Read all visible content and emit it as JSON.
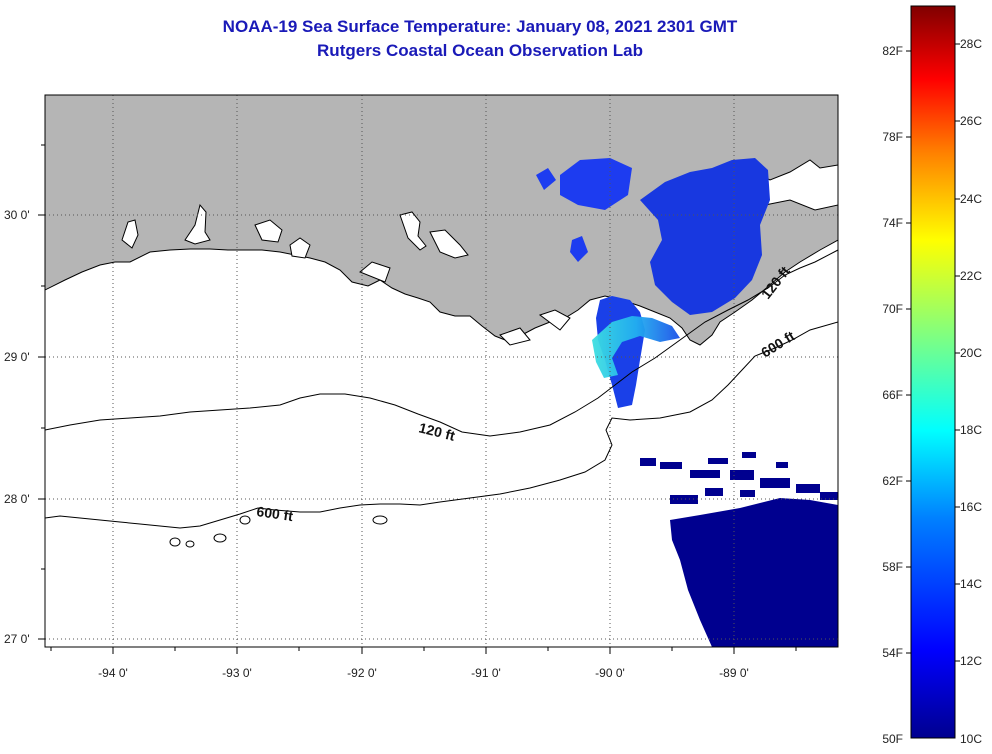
{
  "header": {
    "title_line1": "NOAA-19 Sea Surface Temperature:  January 08, 2021 2301 GMT",
    "title_line2": "Rutgers Coastal Ocean Observation Lab"
  },
  "map": {
    "lat_labels": [
      "30 0'",
      "29 0'",
      "28 0'",
      "27 0'"
    ],
    "lon_labels": [
      "-94 0'",
      "-93 0'",
      "-92 0'",
      "-91 0'",
      "-90 0'",
      "-89 0'"
    ],
    "contours": {
      "shallow_label": "120 ft",
      "deep_label": "600 ft"
    },
    "colors": {
      "land": "#b5b5b5",
      "water": "#ffffff",
      "sst_cold": "#00008f",
      "sst_blue": "#1d3cf0",
      "sst_cyan": "#39d9e8"
    }
  },
  "colorbar": {
    "fahrenheit_labels": [
      "82F",
      "78F",
      "74F",
      "70F",
      "66F",
      "62F",
      "58F",
      "54F",
      "50F"
    ],
    "celsius_labels": [
      "28C",
      "26C",
      "24C",
      "22C",
      "20C",
      "18C",
      "16C",
      "14C",
      "12C",
      "10C"
    ],
    "range_celsius": [
      10,
      29
    ],
    "gradient_colors": [
      "#00008f",
      "#0000ff",
      "#0080ff",
      "#00ffff",
      "#80ff80",
      "#ffff00",
      "#ff8000",
      "#ff0000",
      "#800000"
    ]
  }
}
